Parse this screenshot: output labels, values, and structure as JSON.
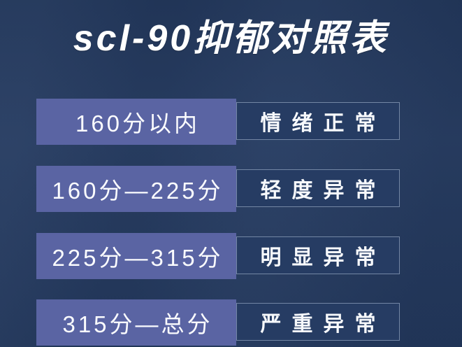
{
  "title": "scl-90抑郁对照表",
  "colors": {
    "background": "#243a60",
    "range_cell_background": "#5a64a3",
    "status_cell_background": "#263c63",
    "status_cell_border": "#b2c2db",
    "text": "#ffffff"
  },
  "table": {
    "rows": [
      {
        "range": "160分以内",
        "level": "情绪正常"
      },
      {
        "range": "160分—225分",
        "level": "轻度异常"
      },
      {
        "range": "225分—315分",
        "level": "明显异常"
      },
      {
        "range": "315分—总分",
        "level": "严重异常"
      }
    ]
  },
  "chart_data": {
    "type": "table",
    "title": "scl-90抑郁对照表",
    "rows": [
      [
        "160分以内",
        "情绪正常"
      ],
      [
        "160分—225分",
        "轻度异常"
      ],
      [
        "225分—315分",
        "明显异常"
      ],
      [
        "315分—总分",
        "严重异常"
      ]
    ],
    "layout_hints": {
      "columns": 2,
      "left_column_style": "solid slate-blue fill",
      "right_column_style": "navy fill with thin light outline",
      "header_style": "large heavy italic white title above table"
    }
  }
}
